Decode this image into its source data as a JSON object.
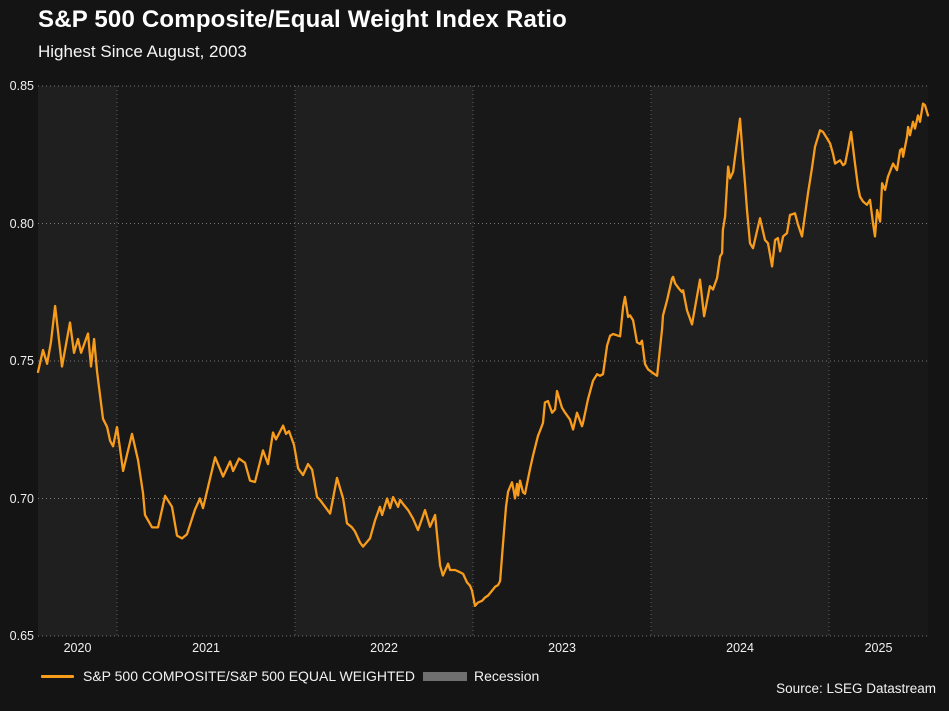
{
  "header": {
    "title": "S&P 500 Composite/Equal Weight Index Ratio",
    "subtitle": "Highest Since August, 2003"
  },
  "legend": {
    "recession_label": "Recession",
    "recession_color": "#6F6F6F"
  },
  "source": {
    "text": "Source: LSEG Datastream"
  },
  "chart_data": {
    "type": "line",
    "title": "S&P 500 Composite/Equal Weight Index Ratio",
    "subtitle": "Highest Since August, 2003",
    "xlabel": "",
    "ylabel": "",
    "xlim": [
      2020.556,
      2025.556
    ],
    "ylim": [
      0.65,
      0.85
    ],
    "grid": "dotted",
    "legend_position": "bottom",
    "y_ticks": [
      {
        "value": 0.85,
        "label": "0.85"
      },
      {
        "value": 0.8,
        "label": "0.80"
      },
      {
        "value": 0.75,
        "label": "0.75"
      },
      {
        "value": 0.7,
        "label": "0.70"
      },
      {
        "value": 0.65,
        "label": "0.65"
      }
    ],
    "x_ticks": [
      {
        "year": 2020,
        "label": "2020"
      },
      {
        "year": 2021,
        "label": "2021"
      },
      {
        "year": 2022,
        "label": "2022"
      },
      {
        "year": 2023,
        "label": "2023"
      },
      {
        "year": 2024,
        "label": "2024"
      },
      {
        "year": 2025,
        "label": "2025"
      }
    ],
    "band_colors": {
      "even_year": "#1F1F1F",
      "odd_year": "#181818"
    },
    "series": [
      {
        "name": "S&P 500 COMPOSITE/S&P 500 EQUAL WEIGHTED",
        "color": "#F89C1C",
        "points": [
          [
            2020.556,
            0.746
          ],
          [
            2020.584,
            0.754
          ],
          [
            2020.607,
            0.749
          ],
          [
            2020.629,
            0.757
          ],
          [
            2020.652,
            0.77
          ],
          [
            2020.691,
            0.748
          ],
          [
            2020.736,
            0.764
          ],
          [
            2020.758,
            0.753
          ],
          [
            2020.781,
            0.758
          ],
          [
            2020.798,
            0.753
          ],
          [
            2020.837,
            0.76
          ],
          [
            2020.854,
            0.748
          ],
          [
            2020.871,
            0.758
          ],
          [
            2020.888,
            0.746
          ],
          [
            2020.921,
            0.729
          ],
          [
            2020.944,
            0.726
          ],
          [
            2020.961,
            0.721
          ],
          [
            2020.978,
            0.719
          ],
          [
            2021.0,
            0.726
          ],
          [
            2021.034,
            0.71
          ],
          [
            2021.084,
            0.7235
          ],
          [
            2021.118,
            0.714
          ],
          [
            2021.146,
            0.702
          ],
          [
            2021.157,
            0.694
          ],
          [
            2021.197,
            0.6895
          ],
          [
            2021.23,
            0.6895
          ],
          [
            2021.27,
            0.701
          ],
          [
            2021.309,
            0.697
          ],
          [
            2021.337,
            0.6865
          ],
          [
            2021.365,
            0.6855
          ],
          [
            2021.393,
            0.687
          ],
          [
            2021.438,
            0.696
          ],
          [
            2021.466,
            0.7
          ],
          [
            2021.483,
            0.6965
          ],
          [
            2021.551,
            0.715
          ],
          [
            2021.596,
            0.708
          ],
          [
            2021.635,
            0.7135
          ],
          [
            2021.652,
            0.71
          ],
          [
            2021.685,
            0.7145
          ],
          [
            2021.719,
            0.713
          ],
          [
            2021.747,
            0.7065
          ],
          [
            2021.775,
            0.706
          ],
          [
            2021.82,
            0.7175
          ],
          [
            2021.848,
            0.7125
          ],
          [
            2021.876,
            0.724
          ],
          [
            2021.893,
            0.7215
          ],
          [
            2021.933,
            0.7265
          ],
          [
            2021.949,
            0.7235
          ],
          [
            2021.966,
            0.7245
          ],
          [
            2021.994,
            0.7195
          ],
          [
            2022.017,
            0.711
          ],
          [
            2022.045,
            0.7085
          ],
          [
            2022.073,
            0.7125
          ],
          [
            2022.096,
            0.7105
          ],
          [
            2022.124,
            0.7005
          ],
          [
            2022.14,
            0.6995
          ],
          [
            2022.169,
            0.697
          ],
          [
            2022.197,
            0.6945
          ],
          [
            2022.236,
            0.7075
          ],
          [
            2022.27,
            0.7
          ],
          [
            2022.292,
            0.691
          ],
          [
            2022.32,
            0.6895
          ],
          [
            2022.337,
            0.688
          ],
          [
            2022.365,
            0.684
          ],
          [
            2022.382,
            0.6825
          ],
          [
            2022.421,
            0.6855
          ],
          [
            2022.449,
            0.692
          ],
          [
            2022.477,
            0.697
          ],
          [
            2022.489,
            0.694
          ],
          [
            2022.517,
            0.7
          ],
          [
            2022.534,
            0.6965
          ],
          [
            2022.551,
            0.7005
          ],
          [
            2022.579,
            0.697
          ],
          [
            2022.59,
            0.6995
          ],
          [
            2022.607,
            0.698
          ],
          [
            2022.635,
            0.6958
          ],
          [
            2022.663,
            0.6927
          ],
          [
            2022.691,
            0.6885
          ],
          [
            2022.73,
            0.6958
          ],
          [
            2022.758,
            0.6897
          ],
          [
            2022.787,
            0.694
          ],
          [
            2022.815,
            0.6756
          ],
          [
            2022.831,
            0.672
          ],
          [
            2022.86,
            0.6763
          ],
          [
            2022.871,
            0.674
          ],
          [
            2022.899,
            0.674
          ],
          [
            2022.927,
            0.6732
          ],
          [
            2022.944,
            0.6726
          ],
          [
            2022.966,
            0.6695
          ],
          [
            2022.983,
            0.6683
          ],
          [
            2022.994,
            0.6665
          ],
          [
            2023.011,
            0.661
          ],
          [
            2023.028,
            0.6622
          ],
          [
            2023.051,
            0.6628
          ],
          [
            2023.067,
            0.664
          ],
          [
            2023.084,
            0.6647
          ],
          [
            2023.107,
            0.6665
          ],
          [
            2023.124,
            0.6679
          ],
          [
            2023.14,
            0.6685
          ],
          [
            2023.152,
            0.67
          ],
          [
            2023.169,
            0.684
          ],
          [
            2023.185,
            0.697
          ],
          [
            2023.197,
            0.7025
          ],
          [
            2023.219,
            0.7059
          ],
          [
            2023.23,
            0.7023
          ],
          [
            2023.236,
            0.7
          ],
          [
            2023.247,
            0.7053
          ],
          [
            2023.253,
            0.7011
          ],
          [
            2023.264,
            0.7065
          ],
          [
            2023.281,
            0.7023
          ],
          [
            2023.292,
            0.7017
          ],
          [
            2023.32,
            0.7107
          ],
          [
            2023.337,
            0.7156
          ],
          [
            2023.365,
            0.7228
          ],
          [
            2023.376,
            0.7246
          ],
          [
            2023.393,
            0.7275
          ],
          [
            2023.404,
            0.7349
          ],
          [
            2023.421,
            0.7354
          ],
          [
            2023.444,
            0.7312
          ],
          [
            2023.461,
            0.7324
          ],
          [
            2023.472,
            0.7391
          ],
          [
            2023.5,
            0.733
          ],
          [
            2023.517,
            0.7312
          ],
          [
            2023.545,
            0.7287
          ],
          [
            2023.562,
            0.7251
          ],
          [
            2023.584,
            0.7312
          ],
          [
            2023.612,
            0.7263
          ],
          [
            2023.618,
            0.7275
          ],
          [
            2023.646,
            0.7361
          ],
          [
            2023.674,
            0.7428
          ],
          [
            2023.697,
            0.7452
          ],
          [
            2023.713,
            0.7446
          ],
          [
            2023.73,
            0.7452
          ],
          [
            2023.753,
            0.7556
          ],
          [
            2023.77,
            0.7592
          ],
          [
            2023.787,
            0.7598
          ],
          [
            2023.815,
            0.7592
          ],
          [
            2023.826,
            0.759
          ],
          [
            2023.843,
            0.7697
          ],
          [
            2023.854,
            0.7733
          ],
          [
            2023.871,
            0.766
          ],
          [
            2023.882,
            0.7666
          ],
          [
            2023.899,
            0.7648
          ],
          [
            2023.921,
            0.7568
          ],
          [
            2023.938,
            0.7562
          ],
          [
            2023.949,
            0.7574
          ],
          [
            2023.966,
            0.7489
          ],
          [
            2023.983,
            0.747
          ],
          [
            2024.006,
            0.7458
          ],
          [
            2024.034,
            0.7446
          ],
          [
            2024.062,
            0.7617
          ],
          [
            2024.067,
            0.7666
          ],
          [
            2024.09,
            0.7721
          ],
          [
            2024.118,
            0.78
          ],
          [
            2024.124,
            0.7806
          ],
          [
            2024.135,
            0.7782
          ],
          [
            2024.157,
            0.7763
          ],
          [
            2024.174,
            0.7751
          ],
          [
            2024.18,
            0.7757
          ],
          [
            2024.202,
            0.7684
          ],
          [
            2024.219,
            0.7654
          ],
          [
            2024.23,
            0.7633
          ],
          [
            2024.275,
            0.7796
          ],
          [
            2024.298,
            0.7663
          ],
          [
            2024.331,
            0.7772
          ],
          [
            2024.348,
            0.776
          ],
          [
            2024.371,
            0.7802
          ],
          [
            2024.388,
            0.788
          ],
          [
            2024.399,
            0.7892
          ],
          [
            2024.404,
            0.7977
          ],
          [
            2024.416,
            0.8025
          ],
          [
            2024.433,
            0.8207
          ],
          [
            2024.444,
            0.8164
          ],
          [
            2024.461,
            0.8188
          ],
          [
            2024.5,
            0.8381
          ],
          [
            2024.517,
            0.823
          ],
          [
            2024.528,
            0.8146
          ],
          [
            2024.539,
            0.8049
          ],
          [
            2024.556,
            0.7928
          ],
          [
            2024.573,
            0.791
          ],
          [
            2024.612,
            0.8019
          ],
          [
            2024.64,
            0.794
          ],
          [
            2024.657,
            0.7928
          ],
          [
            2024.68,
            0.7844
          ],
          [
            2024.697,
            0.794
          ],
          [
            2024.713,
            0.7947
          ],
          [
            2024.725,
            0.7899
          ],
          [
            2024.742,
            0.7953
          ],
          [
            2024.764,
            0.7965
          ],
          [
            2024.781,
            0.8031
          ],
          [
            2024.809,
            0.8037
          ],
          [
            2024.826,
            0.7995
          ],
          [
            2024.848,
            0.7953
          ],
          [
            2024.882,
            0.811
          ],
          [
            2024.904,
            0.82
          ],
          [
            2024.921,
            0.8279
          ],
          [
            2024.949,
            0.8339
          ],
          [
            2024.966,
            0.8333
          ],
          [
            2024.989,
            0.8309
          ],
          [
            2025.006,
            0.8291
          ],
          [
            2025.022,
            0.8255
          ],
          [
            2025.034,
            0.8218
          ],
          [
            2025.051,
            0.8225
          ],
          [
            2025.062,
            0.823
          ],
          [
            2025.079,
            0.8212
          ],
          [
            2025.09,
            0.8218
          ],
          [
            2025.107,
            0.8272
          ],
          [
            2025.124,
            0.8333
          ],
          [
            2025.146,
            0.8218
          ],
          [
            2025.163,
            0.8134
          ],
          [
            2025.174,
            0.8098
          ],
          [
            2025.191,
            0.808
          ],
          [
            2025.213,
            0.8068
          ],
          [
            2025.23,
            0.8086
          ],
          [
            2025.247,
            0.8001
          ],
          [
            2025.258,
            0.7953
          ],
          [
            2025.27,
            0.8049
          ],
          [
            2025.287,
            0.8007
          ],
          [
            2025.298,
            0.8146
          ],
          [
            2025.315,
            0.8122
          ],
          [
            2025.331,
            0.817
          ],
          [
            2025.36,
            0.8218
          ],
          [
            2025.382,
            0.8194
          ],
          [
            2025.399,
            0.8266
          ],
          [
            2025.41,
            0.8272
          ],
          [
            2025.416,
            0.8243
          ],
          [
            2025.438,
            0.8315
          ],
          [
            2025.444,
            0.8351
          ],
          [
            2025.455,
            0.8321
          ],
          [
            2025.472,
            0.837
          ],
          [
            2025.483,
            0.8345
          ],
          [
            2025.5,
            0.8393
          ],
          [
            2025.511,
            0.837
          ],
          [
            2025.528,
            0.8436
          ],
          [
            2025.539,
            0.843
          ],
          [
            2025.556,
            0.8393
          ]
        ]
      }
    ]
  }
}
